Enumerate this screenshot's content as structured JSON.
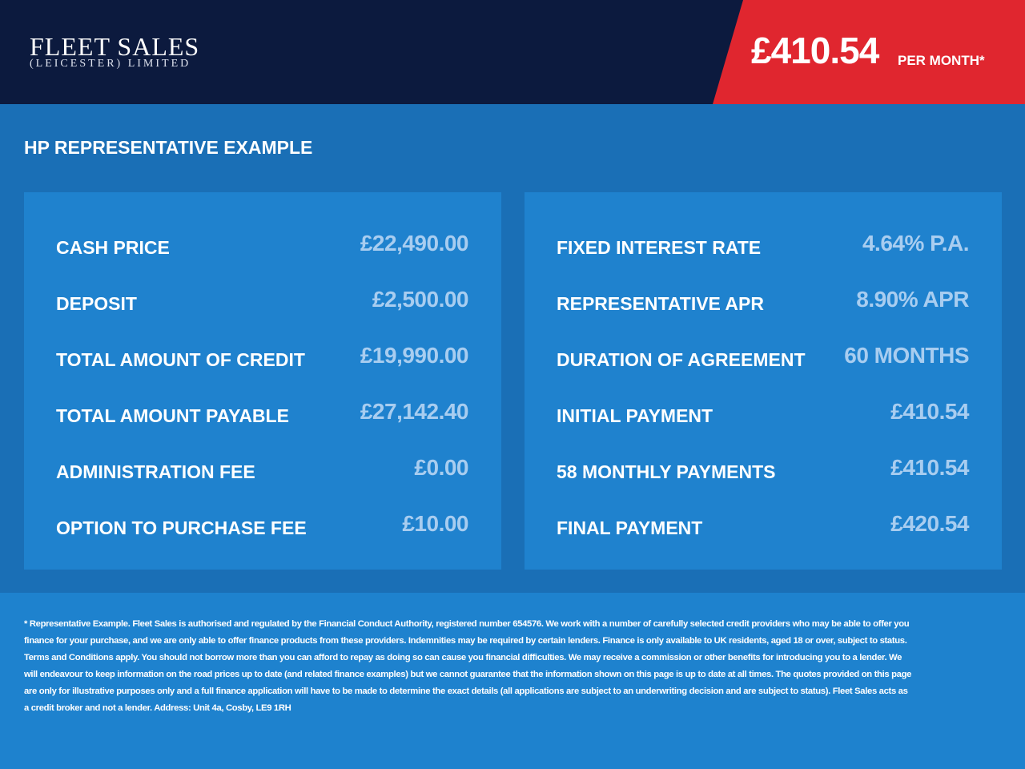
{
  "header": {
    "logo_title": "FLEET SALES",
    "logo_subtitle": "(LEICESTER) LIMITED",
    "price": "£410.54",
    "price_suffix": "PER MONTH*"
  },
  "section_title": "HP REPRESENTATIVE EXAMPLE",
  "panels": [
    {
      "rows": [
        {
          "label": "CASH PRICE",
          "value": "£22,490.00"
        },
        {
          "label": "DEPOSIT",
          "value": "£2,500.00"
        },
        {
          "label": "TOTAL AMOUNT OF CREDIT",
          "value": "£19,990.00"
        },
        {
          "label": "TOTAL AMOUNT PAYABLE",
          "value": "£27,142.40"
        },
        {
          "label": "ADMINISTRATION FEE",
          "value": "£0.00"
        },
        {
          "label": "OPTION TO PURCHASE FEE",
          "value": "£10.00"
        }
      ]
    },
    {
      "rows": [
        {
          "label": "FIXED INTEREST RATE",
          "value": "4.64% P.A."
        },
        {
          "label": "REPRESENTATIVE APR",
          "value": "8.90% APR"
        },
        {
          "label": "DURATION OF AGREEMENT",
          "value": "60 MONTHS"
        },
        {
          "label": "INITIAL PAYMENT",
          "value": "£410.54"
        },
        {
          "label": "58 MONTHLY PAYMENTS",
          "value": "£410.54"
        },
        {
          "label": "FINAL PAYMENT",
          "value": "£420.54"
        }
      ]
    }
  ],
  "disclaimer": "* Representative Example. Fleet Sales is authorised and regulated by the Financial Conduct Authority, registered number 654576. We work with a number of carefully selected credit providers who may be able to offer you finance for your purchase, and we are only able to offer finance products from these providers. Indemnities may be required by certain lenders. Finance is only available to UK residents, aged 18 or over, subject to status. Terms and Conditions apply. You should not borrow more than you can afford to repay as doing so can cause you financial difficulties. We may receive a commission or other benefits for introducing you to a lender. We will endeavour to keep information on the road prices up to date (and related finance examples) but we cannot guarantee that the information shown on this page is up to date at all times. The quotes provided on this page are only for illustrative purposes only and a full finance application will have to be made to determine the exact details (all applications are subject to an underwriting decision and are subject to status). Fleet Sales acts as a credit broker and not a lender. Address: Unit 4a, Cosby, LE9 1RH"
}
